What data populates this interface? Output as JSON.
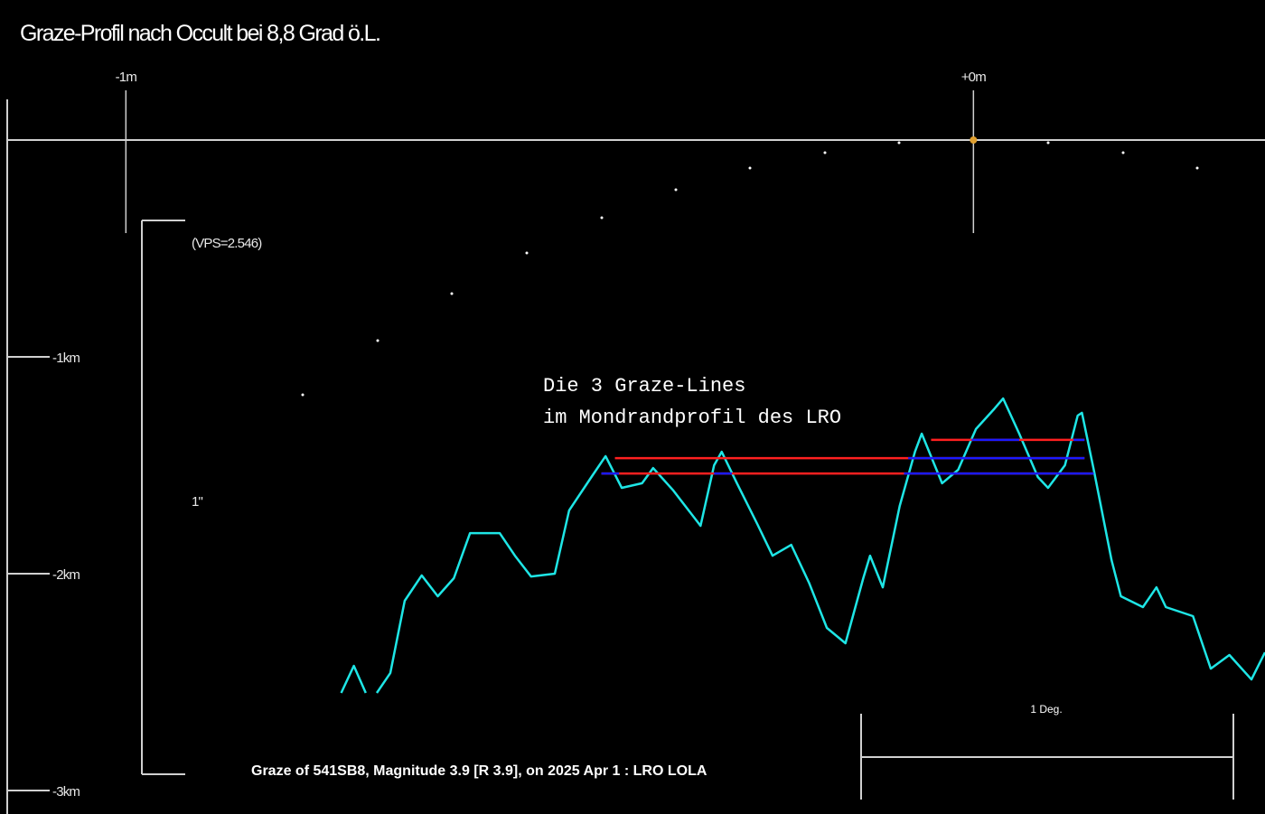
{
  "chart_data": {
    "type": "line",
    "title": "Graze-Profil nach Occult bei 8,8 Grad ö.L.",
    "annotation": [
      "Die 3 Graze-Lines",
      "im Mondrandprofil des LRO"
    ],
    "vps_label": "(VPS=2.546)",
    "arcsec_label": "1\"",
    "scale_label": "1 Deg.",
    "footer": "Graze of  541SB8,  Magnitude 3.9 [R 3.9],  on 2025 Apr  1  :  LRO LOLA",
    "xlim": [
      -1.14,
      0.344
    ],
    "ylim": [
      0,
      -3
    ],
    "xticks": [
      {
        "value": -1,
        "label": "-1m"
      },
      {
        "value": 0,
        "label": "+0m"
      }
    ],
    "yticks": [
      {
        "value": -1,
        "label": "-1km"
      },
      {
        "value": -2,
        "label": "-2km"
      },
      {
        "value": -3,
        "label": "-3km"
      }
    ],
    "series": [
      {
        "color": "#1ee6e6",
        "x": [
          -0.746,
          -0.731,
          -0.717,
          -0.71,
          -0.704,
          -0.688,
          -0.671,
          -0.651,
          -0.632,
          -0.613,
          -0.594,
          -0.576,
          -0.559,
          -0.541,
          -0.522,
          -0.494,
          -0.477,
          -0.45,
          -0.434,
          -0.415,
          -0.391,
          -0.378,
          -0.354,
          -0.322,
          -0.306,
          -0.297,
          -0.279,
          -0.255,
          -0.237,
          -0.215,
          -0.194,
          -0.173,
          -0.151,
          -0.13,
          -0.122,
          -0.107,
          -0.087,
          -0.069,
          -0.061,
          -0.037,
          -0.018,
          0.003,
          0.025,
          0.035,
          0.054,
          0.076,
          0.088,
          0.108,
          0.123,
          0.128,
          0.142,
          0.163,
          0.174,
          0.2,
          0.216,
          0.227,
          0.259,
          0.28,
          0.302,
          0.328,
          0.344
        ],
        "values": [
          -2.55,
          -2.425,
          -2.55,
          null,
          -2.55,
          -2.458,
          -2.125,
          -2.008,
          -2.104,
          -2.021,
          -1.813,
          -1.813,
          -1.813,
          -1.917,
          -2.013,
          -2.0,
          -1.708,
          -1.55,
          -1.458,
          -1.604,
          -1.583,
          -1.513,
          -1.617,
          -1.779,
          -1.5,
          -1.438,
          -1.583,
          -1.771,
          -1.917,
          -1.867,
          -2.042,
          -2.25,
          -2.321,
          -2.021,
          -1.917,
          -2.063,
          -1.688,
          -1.438,
          -1.354,
          -1.583,
          -1.521,
          -1.333,
          -1.238,
          -1.192,
          -1.354,
          -1.554,
          -1.604,
          -1.5,
          -1.271,
          -1.258,
          -1.521,
          -1.938,
          -2.104,
          -2.154,
          -2.063,
          -2.154,
          -2.196,
          -2.438,
          -2.375,
          -2.488,
          -2.363
        ]
      }
    ],
    "graze_lines": [
      {
        "y": -1.383,
        "x": [
          -0.05,
          0.131
        ],
        "color": "#ff2020",
        "blue_color": "#1a1aff",
        "blue_x": [
          [
            -0.002,
            0.054
          ],
          [
            0.118,
            0.131
          ]
        ]
      },
      {
        "y": -1.467,
        "x": [
          -0.423,
          0.131
        ],
        "color": "#ff2020",
        "blue_color": "#1a1aff",
        "blue_x": [
          [
            -0.077,
            0.131
          ]
        ]
      },
      {
        "y": -1.538,
        "x": [
          -0.439,
          0.142
        ],
        "color": "#ff2020",
        "blue_color": "#1a1aff",
        "blue_x": [
          [
            -0.439,
            -0.418
          ],
          [
            -0.306,
            -0.285
          ],
          [
            -0.082,
            0.142
          ]
        ]
      }
    ]
  }
}
